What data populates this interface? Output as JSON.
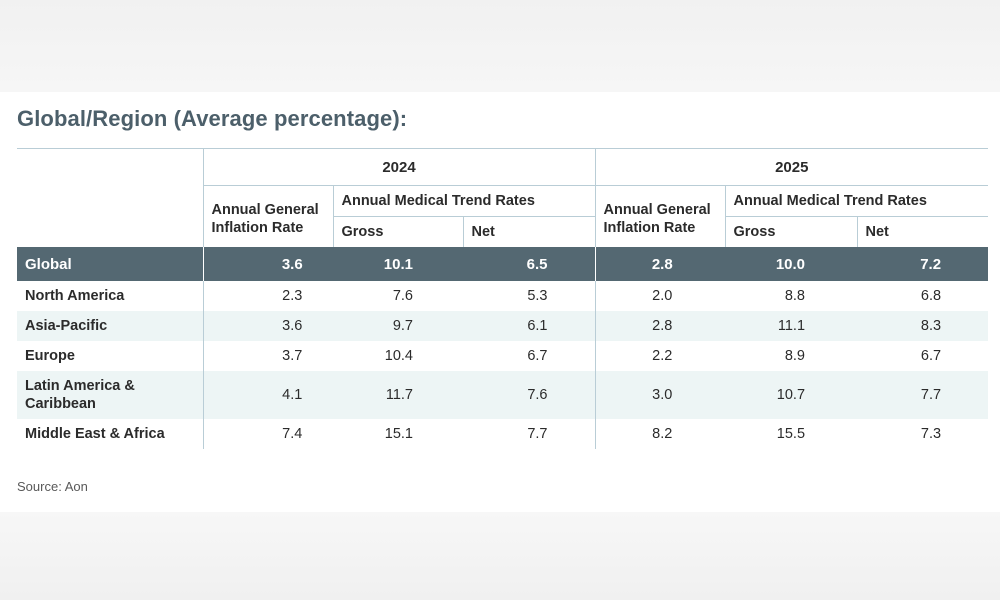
{
  "title": "Global/Region (Average percentage):",
  "source": "Source: Aon",
  "chart_data": {
    "type": "table",
    "years": [
      "2024",
      "2025"
    ],
    "group_headers": {
      "inflation": "Annual General Inflation Rate",
      "trend": "Annual Medical Trend Rates",
      "gross": "Gross",
      "net": "Net"
    },
    "global": {
      "region": "Global",
      "values": [
        "3.6",
        "10.1",
        "6.5",
        "2.8",
        "10.0",
        "7.2"
      ]
    },
    "rows": [
      {
        "region": "North America",
        "values": [
          "2.3",
          "7.6",
          "5.3",
          "2.0",
          "8.8",
          "6.8"
        ]
      },
      {
        "region": "Asia-Pacific",
        "values": [
          "3.6",
          "9.7",
          "6.1",
          "2.8",
          "11.1",
          "8.3"
        ]
      },
      {
        "region": "Europe",
        "values": [
          "3.7",
          "10.4",
          "6.7",
          "2.2",
          "8.9",
          "6.7"
        ]
      },
      {
        "region": "Latin America & Caribbean",
        "values": [
          "4.1",
          "11.7",
          "7.6",
          "3.0",
          "10.7",
          "7.7"
        ]
      },
      {
        "region": "Middle East & Africa",
        "values": [
          "7.4",
          "15.1",
          "7.7",
          "8.2",
          "15.5",
          "7.3"
        ]
      }
    ]
  }
}
